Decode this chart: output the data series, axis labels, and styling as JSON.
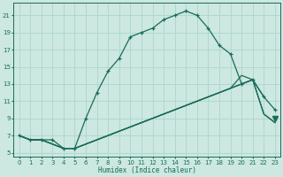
{
  "xlabel": "Humidex (Indice chaleur)",
  "xlim": [
    -0.5,
    23.5
  ],
  "ylim": [
    4.5,
    22.5
  ],
  "xticks": [
    0,
    1,
    2,
    3,
    4,
    5,
    6,
    7,
    8,
    9,
    10,
    11,
    12,
    13,
    14,
    15,
    16,
    17,
    18,
    19,
    20,
    21,
    22,
    23
  ],
  "yticks": [
    5,
    7,
    9,
    11,
    13,
    15,
    17,
    19,
    21
  ],
  "bg_color": "#cce8e0",
  "line_color": "#1a6b5a",
  "grid_color": "#b0d8d0",
  "line1_x": [
    0,
    1,
    2,
    3,
    4,
    5,
    6,
    7,
    8,
    9,
    10,
    11,
    12,
    13,
    14,
    15,
    16,
    17,
    18,
    19,
    20,
    21,
    22,
    23
  ],
  "line1_y": [
    7.0,
    6.5,
    6.5,
    6.5,
    5.5,
    5.5,
    9.0,
    12.0,
    14.5,
    16.0,
    18.5,
    19.0,
    19.5,
    20.5,
    21.0,
    21.5,
    21.0,
    19.5,
    17.5,
    16.5,
    13.0,
    13.5,
    11.5,
    10.0
  ],
  "line2_x": [
    0,
    1,
    2,
    3,
    4,
    5,
    6,
    7,
    8,
    9,
    10,
    11,
    12,
    13,
    14,
    15,
    16,
    17,
    18,
    19,
    20,
    21,
    22,
    23
  ],
  "line2_y": [
    7.0,
    6.5,
    6.5,
    6.0,
    5.5,
    5.5,
    6.0,
    6.5,
    7.0,
    7.5,
    8.0,
    8.5,
    9.0,
    9.5,
    10.0,
    10.5,
    11.0,
    11.5,
    12.0,
    12.5,
    13.0,
    13.5,
    9.5,
    8.5
  ],
  "line3_x": [
    0,
    1,
    2,
    3,
    4,
    5,
    6,
    7,
    8,
    9,
    10,
    11,
    12,
    13,
    14,
    15,
    16,
    17,
    18,
    19,
    20,
    21,
    22,
    23
  ],
  "line3_y": [
    7.0,
    6.5,
    6.5,
    6.0,
    5.5,
    5.5,
    6.0,
    6.5,
    7.0,
    7.5,
    8.0,
    8.5,
    9.0,
    9.5,
    10.0,
    10.5,
    11.0,
    11.5,
    12.0,
    12.5,
    14.0,
    13.5,
    11.5,
    9.0
  ]
}
